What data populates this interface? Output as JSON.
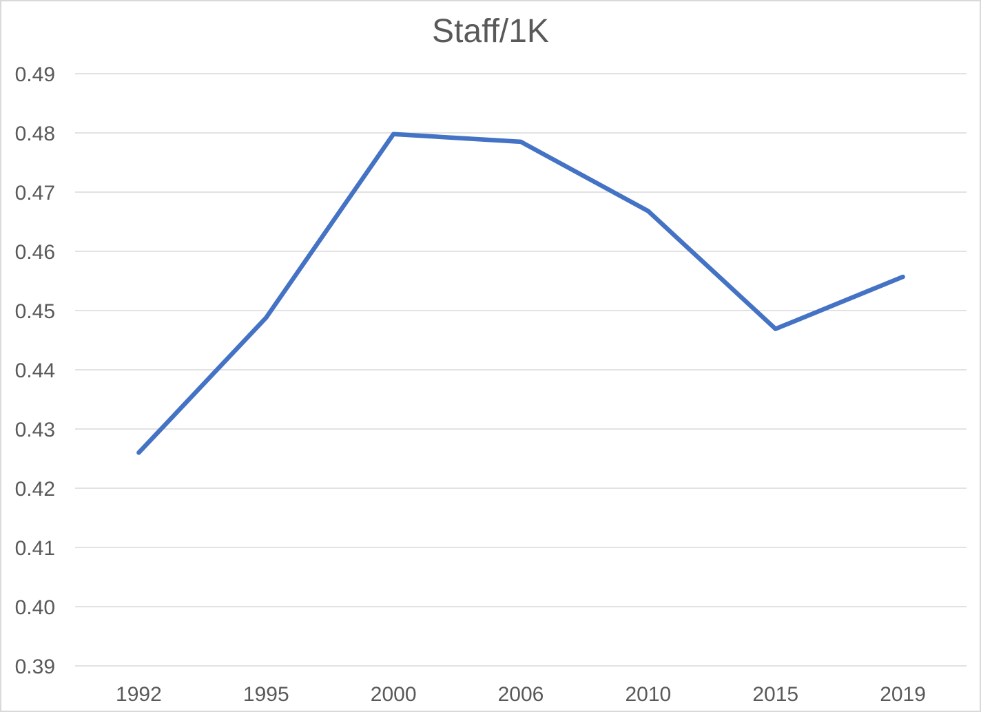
{
  "window": {
    "background": "#FFFFFF",
    "border_color": "#D9D9D9"
  },
  "chart_data": {
    "type": "line",
    "title": "Staff/1K",
    "categories": [
      "1992",
      "1995",
      "2000",
      "2006",
      "2010",
      "2015",
      "2019"
    ],
    "series": [
      {
        "name": "Staff/1K",
        "color": "#4472C4",
        "values": [
          0.426,
          0.4488,
          0.4798,
          0.4785,
          0.4668,
          0.4469,
          0.4557
        ]
      }
    ],
    "xlabel": "",
    "ylabel": "",
    "ylim": [
      0.39,
      0.49
    ],
    "ytick_step": 0.01,
    "ytick_labels": [
      "0.39",
      "0.40",
      "0.41",
      "0.42",
      "0.43",
      "0.44",
      "0.45",
      "0.46",
      "0.47",
      "0.48",
      "0.49"
    ],
    "grid": true,
    "legend_position": "none",
    "markers": false,
    "grid_color": "#D9D9D9",
    "text_color": "#595959",
    "title_color": "#595959"
  }
}
